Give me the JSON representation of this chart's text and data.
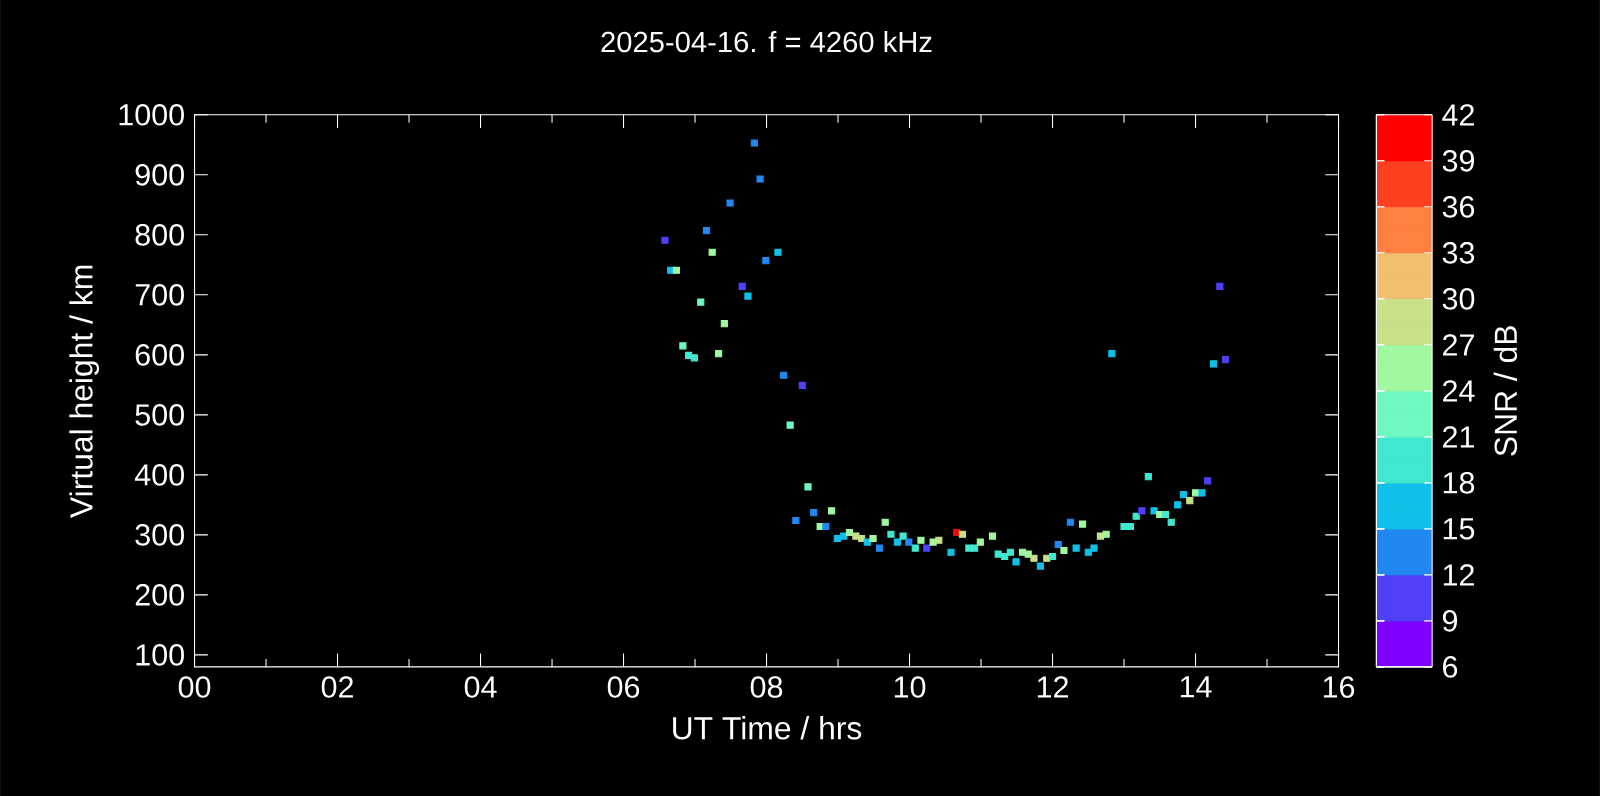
{
  "chart_data": {
    "type": "scatter",
    "title": "2025-04-16. f = 4260 kHz",
    "xlabel": "UT Time / hrs",
    "ylabel": "Virtual height / km",
    "clabel": "SNR / dB",
    "marker": "square",
    "x": [
      7.83,
      7.91,
      7.49,
      7.16,
      6.58,
      7.24,
      8.16,
      7.99,
      6.66,
      6.74,
      7.66,
      7.74,
      7.08,
      7.41,
      6.83,
      6.91,
      6.99,
      7.33,
      8.24,
      8.5,
      8.33,
      8.58,
      8.66,
      8.91,
      8.41,
      8.75,
      8.83,
      8.99,
      9.08,
      9.16,
      9.25,
      9.33,
      9.41,
      9.49,
      9.58,
      9.66,
      9.74,
      9.83,
      9.91,
      9.99,
      10.08,
      10.16,
      10.24,
      10.33,
      10.41,
      10.58,
      10.66,
      10.74,
      10.83,
      10.91,
      10.99,
      11.16,
      11.24,
      11.33,
      11.41,
      11.49,
      11.58,
      11.66,
      11.74,
      11.83,
      11.92,
      12.0,
      12.08,
      12.16,
      12.25,
      12.33,
      12.42,
      12.5,
      12.58,
      12.67,
      12.75,
      12.83,
      13.0,
      13.09,
      13.17,
      13.25,
      13.34,
      13.42,
      13.5,
      13.58,
      13.66,
      13.75,
      13.83,
      13.92,
      14.0,
      14.09,
      14.17,
      14.25,
      14.34,
      14.42
    ],
    "values": [
      953,
      893,
      853,
      807,
      791,
      771,
      771,
      757,
      741,
      741,
      714,
      698,
      688,
      652,
      615,
      599,
      595,
      602,
      566,
      549,
      483,
      380,
      337,
      340,
      324,
      314,
      314,
      294,
      298,
      304,
      298,
      294,
      288,
      294,
      278,
      321,
      301,
      288,
      298,
      288,
      278,
      291,
      278,
      288,
      291,
      271,
      304,
      301,
      278,
      278,
      288,
      298,
      268,
      264,
      271,
      255,
      271,
      268,
      261,
      248,
      261,
      264,
      284,
      274,
      321,
      278,
      318,
      271,
      278,
      298,
      301,
      602,
      314,
      314,
      331,
      340,
      397,
      340,
      334,
      334,
      321,
      350,
      367,
      357,
      370,
      370,
      390,
      585,
      714,
      592
    ],
    "cvalues": [
      14,
      14,
      14,
      14,
      11,
      26,
      17,
      14,
      17,
      26,
      11,
      17,
      23,
      26,
      23,
      20,
      20,
      26,
      14,
      11,
      23,
      23,
      14,
      26,
      14,
      26,
      14,
      17,
      17,
      26,
      29,
      29,
      17,
      26,
      14,
      26,
      20,
      17,
      20,
      14,
      20,
      26,
      11,
      26,
      29,
      17,
      40,
      29,
      20,
      20,
      26,
      26,
      20,
      20,
      20,
      17,
      26,
      26,
      29,
      17,
      29,
      20,
      14,
      26,
      14,
      17,
      26,
      17,
      17,
      29,
      26,
      17,
      20,
      20,
      20,
      11,
      20,
      17,
      26,
      20,
      20,
      17,
      17,
      29,
      26,
      17,
      11,
      17,
      11,
      11
    ],
    "xlim": [
      0,
      16
    ],
    "ylim": [
      80,
      1000
    ],
    "xticks": [
      {
        "value": 0,
        "label": "00"
      },
      {
        "value": 1,
        "label": null
      },
      {
        "value": 2,
        "label": "02"
      },
      {
        "value": 3,
        "label": null
      },
      {
        "value": 4,
        "label": "04"
      },
      {
        "value": 5,
        "label": null
      },
      {
        "value": 6,
        "label": "06"
      },
      {
        "value": 7,
        "label": null
      },
      {
        "value": 8,
        "label": "08"
      },
      {
        "value": 9,
        "label": null
      },
      {
        "value": 10,
        "label": "10"
      },
      {
        "value": 11,
        "label": null
      },
      {
        "value": 12,
        "label": "12"
      },
      {
        "value": 13,
        "label": null
      },
      {
        "value": 14,
        "label": "14"
      },
      {
        "value": 15,
        "label": null
      },
      {
        "value": 16,
        "label": "16"
      }
    ],
    "yticks": [
      100,
      200,
      300,
      400,
      500,
      600,
      700,
      800,
      900,
      1000
    ],
    "clim": [
      6,
      42
    ],
    "cticks": [
      6,
      9,
      12,
      15,
      18,
      21,
      24,
      27,
      30,
      33,
      36,
      39,
      42
    ]
  }
}
